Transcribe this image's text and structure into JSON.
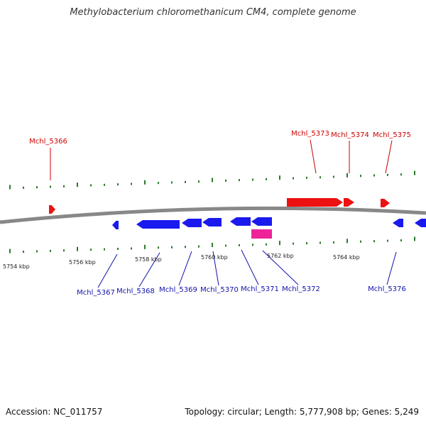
{
  "title": "Methylobacterium chloromethanicum CM4, complete genome",
  "footer": {
    "accession": "Accession: NC_011757",
    "genome_info": "Topology: circular; Length: 5,777,908 bp; Genes: 5,249"
  },
  "colors": {
    "forward": "#ee1111",
    "reverse": "#1a1aee",
    "rna": "#ee2299",
    "backbone": "#888888",
    "ticks": "#2a7a2a",
    "label_forward": "#cc0000",
    "label_reverse": "#1111aa"
  },
  "axis": {
    "ticks": [
      {
        "label": "5754 kbp",
        "kbp": 5754
      },
      {
        "label": "5756 kbp",
        "kbp": 5756
      },
      {
        "label": "5758 kbp",
        "kbp": 5758
      },
      {
        "label": "5760 kbp",
        "kbp": 5760
      },
      {
        "label": "5762 kbp",
        "kbp": 5762
      },
      {
        "label": "5764 kbp",
        "kbp": 5764
      }
    ]
  },
  "genes_forward": [
    {
      "label": "Mchl_5366"
    },
    {
      "label": "Mchl_5373"
    },
    {
      "label": "Mchl_5374"
    },
    {
      "label": "Mchl_5375"
    }
  ],
  "genes_reverse": [
    {
      "label": "Mchl_5367"
    },
    {
      "label": "Mchl_5368"
    },
    {
      "label": "Mchl_5369"
    },
    {
      "label": "Mchl_5370"
    },
    {
      "label": "Mchl_5371"
    },
    {
      "label": "Mchl_5372"
    },
    {
      "label": "Mchl_5376"
    }
  ]
}
